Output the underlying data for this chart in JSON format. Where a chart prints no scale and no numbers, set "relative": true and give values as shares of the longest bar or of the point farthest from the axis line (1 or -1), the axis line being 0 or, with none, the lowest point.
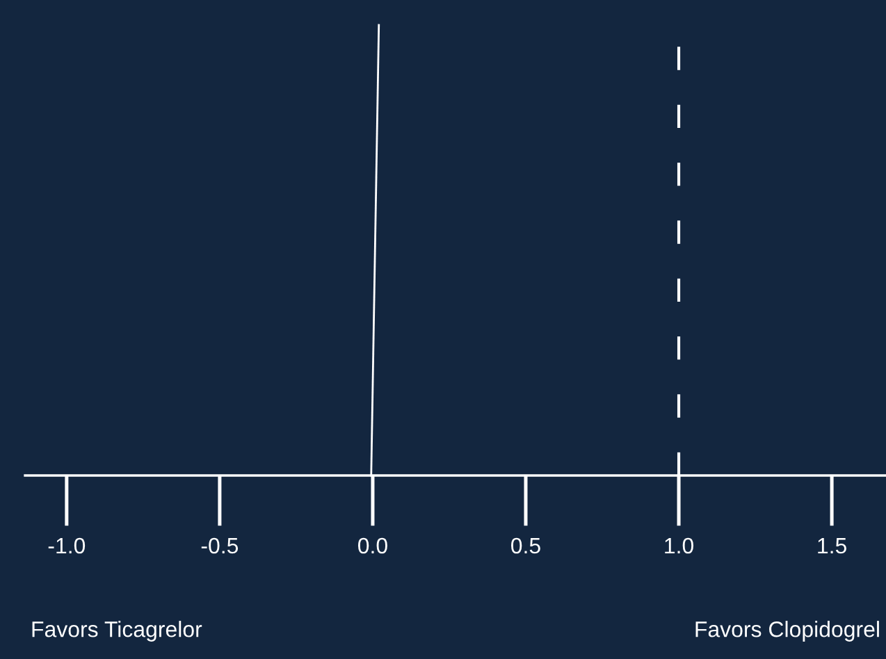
{
  "chart_data": {
    "type": "line",
    "relative": true,
    "x": [
      -0.005,
      0.02
    ],
    "series": [
      {
        "color": "#ffffff",
        "values": [
          0,
          1
        ]
      }
    ],
    "xlim": [
      -1.136,
      1.677
    ],
    "xticks": [
      {
        "value": -1.0,
        "label": "-1.0"
      },
      {
        "value": -0.5,
        "label": "-0.5"
      },
      {
        "value": 0.0,
        "label": "0.0"
      },
      {
        "value": 0.5,
        "label": "0.5"
      },
      {
        "value": 1.0,
        "label": "1.0"
      },
      {
        "value": 1.5,
        "label": "1.5"
      }
    ],
    "ref_lines": [
      {
        "axis": "x",
        "value": 1,
        "color": "#ffffff",
        "line_style": "dashed"
      }
    ],
    "annotations": [
      "Favors Ticagrelor",
      "Favors Clopidogrel"
    ],
    "tick_labels": "x"
  }
}
